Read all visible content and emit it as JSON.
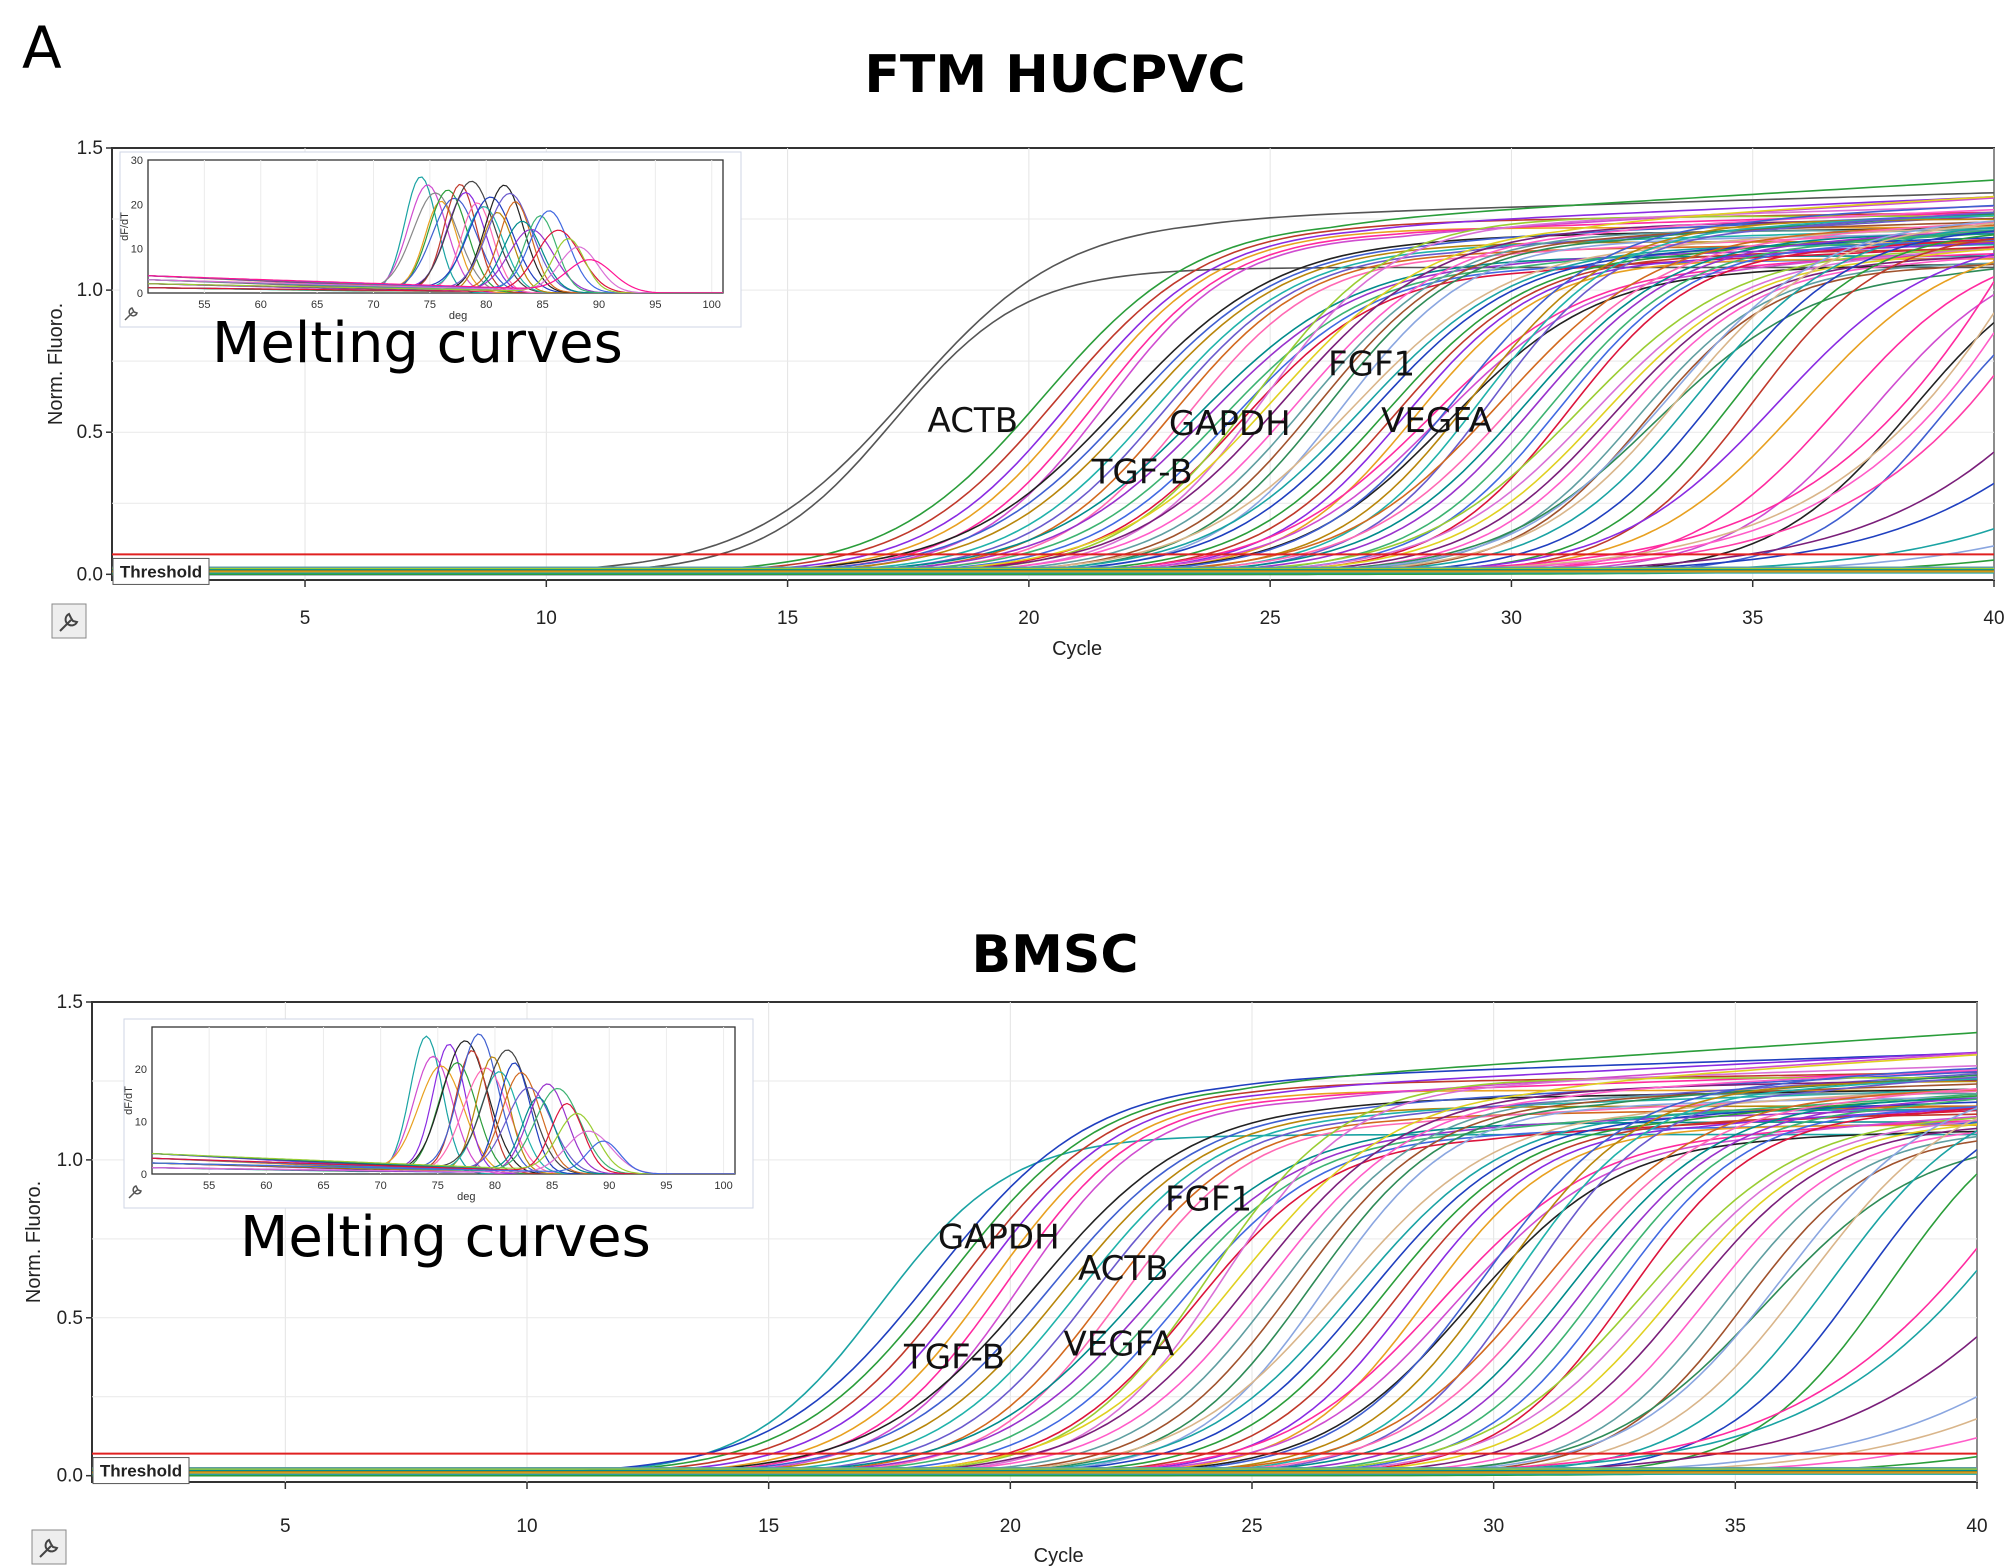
{
  "figure": {
    "panel_letter": "A"
  },
  "chart_data": [
    {
      "type": "line",
      "title": "FTM HUCPVC",
      "xlabel": "Cycle",
      "ylabel": "Norm. Fluoro.",
      "xlim": [
        1,
        40
      ],
      "ylim": [
        -0.02,
        1.5
      ],
      "xticks": [
        "5",
        "10",
        "15",
        "20",
        "25",
        "30",
        "35",
        "40"
      ],
      "yticks": [
        "0.0",
        "0.5",
        "1.0",
        "1.5"
      ],
      "threshold": {
        "label": "Threshold",
        "value": 0.07,
        "color": "#e02020"
      },
      "gene_labels": [
        {
          "text": "ACTB",
          "cycle": 17.9,
          "value": 0.5
        },
        {
          "text": "TGF-B",
          "cycle": 21.3,
          "value": 0.32
        },
        {
          "text": "GAPDH",
          "cycle": 22.9,
          "value": 0.49
        },
        {
          "text": "FGF1",
          "cycle": 26.2,
          "value": 0.7
        },
        {
          "text": "VEGFA",
          "cycle": 27.3,
          "value": 0.5
        }
      ],
      "curve_midpoints": [
        17.2,
        17.5,
        20.3,
        20.6,
        20.9,
        21.1,
        21.4,
        21.6,
        21.9,
        22.1,
        22.3,
        22.6,
        22.8,
        23.0,
        23.3,
        23.5,
        23.7,
        24.0,
        24.2,
        24.4,
        24.7,
        24.9,
        25.1,
        25.3,
        25.6,
        25.8,
        26.0,
        26.2,
        26.5,
        26.7,
        26.9,
        27.1,
        27.4,
        27.6,
        27.8,
        28.0,
        28.3,
        28.5,
        28.7,
        28.9,
        29.2,
        29.4,
        29.6,
        29.8,
        30.1,
        30.3,
        30.5,
        30.8,
        31.0,
        31.2,
        31.4,
        31.7,
        31.9,
        32.1,
        32.3,
        32.6,
        32.8,
        33.0,
        33.3,
        33.5,
        33.8,
        34.2,
        34.6,
        35.0,
        35.5,
        36.0,
        36.8,
        37.5,
        38.3,
        39.0
      ],
      "late_tails": [
        {
          "end_value": 1.03,
          "color": "#ff2aa0"
        },
        {
          "end_value": 0.92,
          "color": "#d9b58a"
        },
        {
          "end_value": 0.85,
          "color": "#ff5cc8"
        },
        {
          "end_value": 0.7,
          "color": "#ff3da8"
        },
        {
          "end_value": 0.43,
          "color": "#7a1f7a"
        },
        {
          "end_value": 0.32,
          "color": "#1f3fbf"
        },
        {
          "end_value": 0.16,
          "color": "#1aa3a3"
        },
        {
          "end_value": 0.1,
          "color": "#8aa6e0"
        },
        {
          "end_value": 0.05,
          "color": "#2a9d3a"
        }
      ],
      "inset": {
        "title": "Melting curves",
        "xticks": [
          "55",
          "60",
          "65",
          "70",
          "75",
          "80",
          "85",
          "90",
          "95",
          "100"
        ],
        "yticks": [
          "0",
          "10",
          "20",
          "30"
        ],
        "xlabel": "deg",
        "ylabel": "dF/dT",
        "xlim": [
          50,
          101
        ],
        "ylim": [
          0,
          30
        ],
        "peaks": [
          {
            "temp": 74.2,
            "height": 26,
            "color": "#1aa3a3"
          },
          {
            "temp": 74.8,
            "height": 24,
            "color": "#d04cd0"
          },
          {
            "temp": 75.5,
            "height": 22,
            "color": "#888888"
          },
          {
            "temp": 76.0,
            "height": 20,
            "color": "#e8a020"
          },
          {
            "temp": 76.6,
            "height": 23,
            "color": "#2a9d3a"
          },
          {
            "temp": 77.2,
            "height": 21,
            "color": "#3f5fd0"
          },
          {
            "temp": 77.7,
            "height": 24,
            "color": "#c0392b"
          },
          {
            "temp": 78.2,
            "height": 22,
            "color": "#8a2be2"
          },
          {
            "temp": 78.7,
            "height": 25,
            "color": "#444444"
          },
          {
            "temp": 79.2,
            "height": 20,
            "color": "#ff69b4"
          },
          {
            "temp": 79.8,
            "height": 19,
            "color": "#20b2aa"
          },
          {
            "temp": 80.4,
            "height": 21,
            "color": "#1f3fbf"
          },
          {
            "temp": 81.0,
            "height": 18,
            "color": "#b8860b"
          },
          {
            "temp": 81.6,
            "height": 24,
            "color": "#222222"
          },
          {
            "temp": 82.1,
            "height": 22,
            "color": "#6a5acd"
          },
          {
            "temp": 82.6,
            "height": 20,
            "color": "#d2691e"
          },
          {
            "temp": 83.2,
            "height": 16,
            "color": "#008b8b"
          },
          {
            "temp": 84.0,
            "height": 14,
            "color": "#9932cc"
          },
          {
            "temp": 84.8,
            "height": 17,
            "color": "#3cb371"
          },
          {
            "temp": 85.6,
            "height": 18,
            "color": "#4169e1"
          },
          {
            "temp": 86.4,
            "height": 14,
            "color": "#dc143c"
          },
          {
            "temp": 87.3,
            "height": 12,
            "color": "#9acd32"
          },
          {
            "temp": 88.2,
            "height": 10,
            "color": "#da70d6"
          },
          {
            "temp": 89.2,
            "height": 7,
            "color": "#ff1493"
          }
        ]
      }
    },
    {
      "type": "line",
      "title": "BMSC",
      "xlabel": "Cycle",
      "ylabel": "Norm. Fluoro.",
      "xlim": [
        1,
        40
      ],
      "ylim": [
        -0.02,
        1.5
      ],
      "xticks": [
        "5",
        "10",
        "15",
        "20",
        "25",
        "30",
        "35",
        "40"
      ],
      "yticks": [
        "0.0",
        "0.5",
        "1.0",
        "1.5"
      ],
      "threshold": {
        "label": "Threshold",
        "value": 0.07,
        "color": "#e02020"
      },
      "gene_labels": [
        {
          "text": "GAPDH",
          "cycle": 18.5,
          "value": 0.72
        },
        {
          "text": "ACTB",
          "cycle": 21.4,
          "value": 0.62
        },
        {
          "text": "FGF1",
          "cycle": 23.2,
          "value": 0.84
        },
        {
          "text": "TGF-B",
          "cycle": 17.8,
          "value": 0.34
        },
        {
          "text": "VEGFA",
          "cycle": 21.1,
          "value": 0.38
        }
      ],
      "curve_midpoints": [
        17.3,
        18.4,
        18.7,
        19.0,
        19.3,
        19.6,
        19.9,
        20.2,
        20.5,
        20.8,
        21.1,
        21.4,
        21.7,
        22.0,
        22.3,
        22.6,
        22.9,
        23.2,
        23.5,
        23.8,
        24.1,
        24.4,
        24.7,
        25.0,
        25.3,
        25.6,
        25.9,
        26.2,
        26.5,
        26.8,
        27.1,
        27.4,
        27.7,
        28.0,
        28.3,
        28.6,
        28.9,
        29.2,
        29.5,
        29.8,
        30.1,
        30.4,
        30.7,
        31.0,
        31.3,
        31.6,
        31.9,
        32.2,
        32.5,
        32.8,
        33.1,
        33.4,
        33.7,
        34.0,
        34.4,
        34.8,
        35.2,
        35.6,
        36.0,
        36.5,
        37.0,
        37.6,
        38.2
      ],
      "late_tails": [
        {
          "end_value": 0.72,
          "color": "#ff2aa0"
        },
        {
          "end_value": 0.65,
          "color": "#1aa3a3"
        },
        {
          "end_value": 0.44,
          "color": "#7a1f7a"
        },
        {
          "end_value": 0.25,
          "color": "#8aa6e0"
        },
        {
          "end_value": 0.18,
          "color": "#d9b58a"
        },
        {
          "end_value": 0.12,
          "color": "#ff5cc8"
        },
        {
          "end_value": 0.06,
          "color": "#2a9d3a"
        }
      ],
      "inset": {
        "title": "Melting curves",
        "xticks": [
          "55",
          "60",
          "65",
          "70",
          "75",
          "80",
          "85",
          "90",
          "95",
          "100"
        ],
        "yticks": [
          "0",
          "10",
          "20"
        ],
        "xlabel": "deg",
        "ylabel": "dF/dT",
        "xlim": [
          50,
          101
        ],
        "ylim": [
          0,
          28
        ],
        "peaks": [
          {
            "temp": 74.0,
            "height": 26,
            "color": "#1aa3a3"
          },
          {
            "temp": 74.6,
            "height": 22,
            "color": "#d04cd0"
          },
          {
            "temp": 75.3,
            "height": 20,
            "color": "#e8a020"
          },
          {
            "temp": 76.0,
            "height": 24,
            "color": "#8a2be2"
          },
          {
            "temp": 76.7,
            "height": 21,
            "color": "#2a9d3a"
          },
          {
            "temp": 77.4,
            "height": 25,
            "color": "#222222"
          },
          {
            "temp": 78.0,
            "height": 23,
            "color": "#c0392b"
          },
          {
            "temp": 78.6,
            "height": 26,
            "color": "#3f5fd0"
          },
          {
            "temp": 79.2,
            "height": 20,
            "color": "#ff69b4"
          },
          {
            "temp": 79.8,
            "height": 22,
            "color": "#b8860b"
          },
          {
            "temp": 80.4,
            "height": 19,
            "color": "#20b2aa"
          },
          {
            "temp": 81.1,
            "height": 23,
            "color": "#444444"
          },
          {
            "temp": 81.7,
            "height": 21,
            "color": "#1f3fbf"
          },
          {
            "temp": 82.3,
            "height": 19,
            "color": "#d2691e"
          },
          {
            "temp": 83.0,
            "height": 16,
            "color": "#6a5acd"
          },
          {
            "temp": 83.8,
            "height": 14,
            "color": "#008b8b"
          },
          {
            "temp": 84.6,
            "height": 17,
            "color": "#9932cc"
          },
          {
            "temp": 85.5,
            "height": 16,
            "color": "#3cb371"
          },
          {
            "temp": 86.3,
            "height": 13,
            "color": "#dc143c"
          },
          {
            "temp": 87.2,
            "height": 11,
            "color": "#9acd32"
          },
          {
            "temp": 88.2,
            "height": 8,
            "color": "#da70d6"
          },
          {
            "temp": 89.5,
            "height": 6,
            "color": "#4169e1"
          }
        ]
      }
    }
  ]
}
